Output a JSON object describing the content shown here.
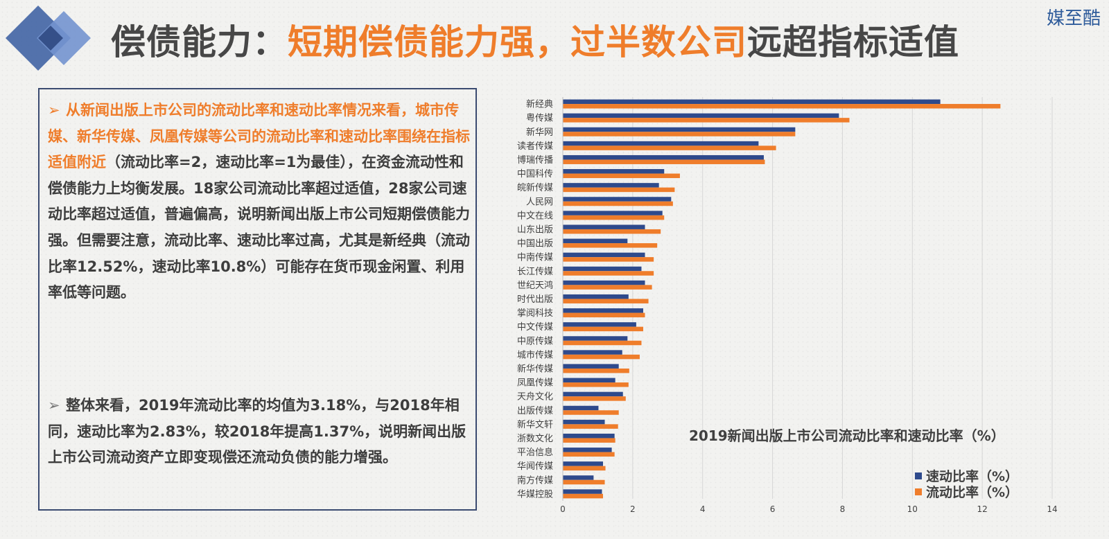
{
  "brand": "媒至酷",
  "title": {
    "part1": "偿债能力：",
    "highlight": "短期偿债能力强，过半数公司",
    "part2": "远超指标适值"
  },
  "bullets": [
    {
      "hl": "从新闻出版上市公司的流动比率和速动比率情况来看，城市传媒、新华传媒、凤凰传媒等公司的流动比率和速动比率围绕在指标适值附近",
      "rest": "（流动比率=2，速动比率=1为最佳），在资金流动性和偿债能力上均衡发展。18家公司流动比率超过适值，28家公司速动比率超过适值，普遍偏高，说明新闻出版上市公司短期偿债能力强。但需要注意，流动比率、速动比率过高，尤其是新经典（流动比率12.52%，速动比率10.8%）可能存在货币现金闲置、利用率低等问题。"
    },
    {
      "hl": "",
      "rest": "整体来看，2019年流动比率的均值为3.18%，与2018年相同，速动比率为2.83%，较2018年提高1.37%，说明新闻出版上市公司流动资产立即变现偿还流动负债的能力增强。"
    }
  ],
  "colors": {
    "accent": "#ef7d2b",
    "quick": "#2e4a8c",
    "current": "#ef7d2b",
    "border": "#3a4a70"
  },
  "chart_data": {
    "type": "bar",
    "orientation": "horizontal",
    "title": "2019新闻出版上市公司流动比率和速动比率（%）",
    "categories": [
      "新经典",
      "粤传媒",
      "新华网",
      "读者传媒",
      "博瑞传播",
      "中国科传",
      "皖新传媒",
      "人民网",
      "中文在线",
      "山东出版",
      "中国出版",
      "中南传媒",
      "长江传媒",
      "世纪天鸿",
      "时代出版",
      "掌阅科技",
      "中文传媒",
      "中原传媒",
      "城市传媒",
      "新华传媒",
      "凤凰传媒",
      "天舟文化",
      "出版传媒",
      "新华文轩",
      "浙数文化",
      "平治信息",
      "华闻传媒",
      "南方传媒",
      "华媒控股"
    ],
    "series": [
      {
        "name": "速动比率（%）",
        "values": [
          10.8,
          7.9,
          6.65,
          5.6,
          5.75,
          2.9,
          2.75,
          3.1,
          2.85,
          2.35,
          1.85,
          2.35,
          2.25,
          2.35,
          1.88,
          2.3,
          2.1,
          1.85,
          1.7,
          1.6,
          1.5,
          1.72,
          1.02,
          1.2,
          1.48,
          1.4,
          1.15,
          0.88,
          1.12
        ]
      },
      {
        "name": "流动比率（%）",
        "values": [
          12.52,
          8.2,
          6.65,
          6.1,
          5.78,
          3.35,
          3.2,
          3.15,
          2.9,
          2.8,
          2.7,
          2.6,
          2.6,
          2.55,
          2.45,
          2.35,
          2.3,
          2.25,
          2.2,
          1.9,
          1.88,
          1.8,
          1.6,
          1.58,
          1.5,
          1.48,
          1.22,
          1.2,
          1.15
        ]
      }
    ],
    "xlim": [
      0,
      14
    ],
    "xticks": [
      "0",
      "2",
      "4",
      "6",
      "8",
      "10",
      "12",
      "14"
    ],
    "grid": true,
    "legend": "bottom-right"
  }
}
